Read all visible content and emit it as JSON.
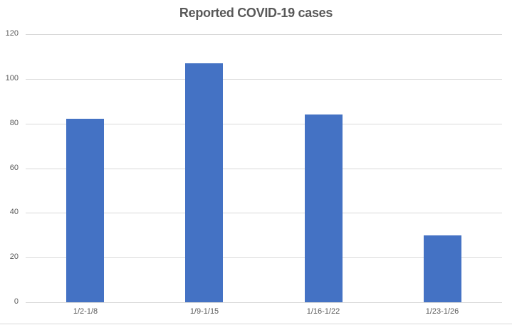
{
  "chart_data": {
    "type": "bar",
    "title": "Reported COVID-19 cases",
    "categories": [
      "1/2-1/8",
      "1/9-1/15",
      "1/16-1/22",
      "1/23-1/26"
    ],
    "values": [
      82,
      107,
      84,
      30
    ],
    "xlabel": "",
    "ylabel": "",
    "ylim": [
      0,
      120
    ],
    "yticks": [
      0,
      20,
      40,
      60,
      80,
      100,
      120
    ],
    "grid": true,
    "legend": null,
    "bar_color": "#4472c4"
  }
}
